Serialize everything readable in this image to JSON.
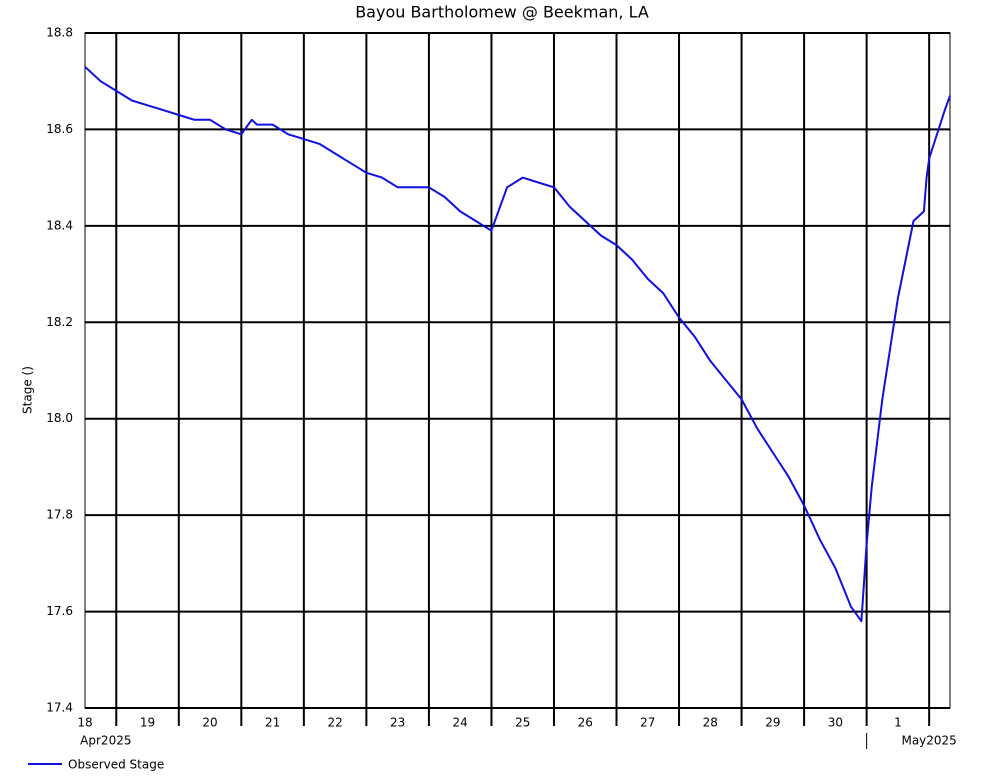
{
  "chart_data": {
    "type": "line",
    "title": "Bayou Bartholomew @ Beekman, LA",
    "y_label": "Stage ()",
    "xlim": [
      "2025-04-18T12:00",
      "2025-05-02T08:00"
    ],
    "ylim": [
      17.4,
      18.8
    ],
    "yticks": [
      17.4,
      17.6,
      17.8,
      {
        "value": 18,
        "label": "18.0"
      },
      18.2,
      18.4,
      18.6,
      18.8
    ],
    "xticks": [
      {
        "value": "2025-04-18T12:00",
        "label": "18"
      },
      {
        "value": "2025-04-19T12:00",
        "label": "19"
      },
      {
        "value": "2025-04-20T12:00",
        "label": "20"
      },
      {
        "value": "2025-04-21T12:00",
        "label": "21"
      },
      {
        "value": "2025-04-22T12:00",
        "label": "22"
      },
      {
        "value": "2025-04-23T12:00",
        "label": "23"
      },
      {
        "value": "2025-04-24T12:00",
        "label": "24"
      },
      {
        "value": "2025-04-25T12:00",
        "label": "25"
      },
      {
        "value": "2025-04-26T12:00",
        "label": "26"
      },
      {
        "value": "2025-04-27T12:00",
        "label": "27"
      },
      {
        "value": "2025-04-28T12:00",
        "label": "28"
      },
      {
        "value": "2025-04-29T12:00",
        "label": "29"
      },
      {
        "value": "2025-04-30T12:00",
        "label": "30"
      },
      {
        "value": "2025-05-01T12:00",
        "label": "1"
      }
    ],
    "xgrid": [
      "2025-04-19T00:00",
      "2025-04-20T00:00",
      "2025-04-21T00:00",
      "2025-04-22T00:00",
      "2025-04-23T00:00",
      "2025-04-24T00:00",
      "2025-04-25T00:00",
      "2025-04-26T00:00",
      "2025-04-27T00:00",
      "2025-04-28T00:00",
      "2025-04-29T00:00",
      "2025-04-30T00:00",
      "2025-05-01T00:00",
      "2025-05-02T00:00"
    ],
    "month_labels": [
      {
        "value": "2025-04-18T20:00",
        "label": "Apr2025"
      },
      {
        "value": "2025-05-02T00:00",
        "label": "May2025"
      }
    ],
    "month_boundaries": [
      "2025-05-01T00:00"
    ],
    "grid": true,
    "legend": "bottom-left",
    "x": [
      "2025-04-18T12:00",
      "2025-04-18T18:00",
      "2025-04-19T00:00",
      "2025-04-19T06:00",
      "2025-04-19T12:00",
      "2025-04-19T18:00",
      "2025-04-20T00:00",
      "2025-04-20T06:00",
      "2025-04-20T12:00",
      "2025-04-20T18:00",
      "2025-04-21T00:00",
      "2025-04-21T04:00",
      "2025-04-21T06:00",
      "2025-04-21T12:00",
      "2025-04-21T18:00",
      "2025-04-22T00:00",
      "2025-04-22T06:00",
      "2025-04-22T12:00",
      "2025-04-22T18:00",
      "2025-04-23T00:00",
      "2025-04-23T06:00",
      "2025-04-23T12:00",
      "2025-04-23T18:00",
      "2025-04-24T00:00",
      "2025-04-24T06:00",
      "2025-04-24T12:00",
      "2025-04-24T18:00",
      "2025-04-25T00:00",
      "2025-04-25T06:00",
      "2025-04-25T12:00",
      "2025-04-25T18:00",
      "2025-04-26T00:00",
      "2025-04-26T06:00",
      "2025-04-26T12:00",
      "2025-04-26T18:00",
      "2025-04-27T00:00",
      "2025-04-27T06:00",
      "2025-04-27T12:00",
      "2025-04-27T18:00",
      "2025-04-28T00:00",
      "2025-04-28T06:00",
      "2025-04-28T12:00",
      "2025-04-28T18:00",
      "2025-04-29T00:00",
      "2025-04-29T06:00",
      "2025-04-29T12:00",
      "2025-04-29T18:00",
      "2025-04-30T00:00",
      "2025-04-30T06:00",
      "2025-04-30T12:00",
      "2025-04-30T18:00",
      "2025-04-30T22:00",
      "2025-05-01T00:00",
      "2025-05-01T02:00",
      "2025-05-01T06:00",
      "2025-05-01T12:00",
      "2025-05-01T18:00",
      "2025-05-01T22:00",
      "2025-05-01T23:00",
      "2025-05-02T00:00",
      "2025-05-02T06:00",
      "2025-05-02T08:00"
    ],
    "series": [
      {
        "name": "Observed Stage",
        "color": "#1010e0",
        "values": [
          18.73,
          18.7,
          18.68,
          18.66,
          18.65,
          18.64,
          18.63,
          18.62,
          18.62,
          18.6,
          18.59,
          18.62,
          18.61,
          18.61,
          18.59,
          18.58,
          18.57,
          18.55,
          18.53,
          18.51,
          18.5,
          18.48,
          18.48,
          18.48,
          18.46,
          18.43,
          18.41,
          18.39,
          18.48,
          18.5,
          18.49,
          18.48,
          18.44,
          18.41,
          18.38,
          18.36,
          18.33,
          18.29,
          18.26,
          18.21,
          18.17,
          18.12,
          18.08,
          18.04,
          17.98,
          17.93,
          17.88,
          17.82,
          17.75,
          17.69,
          17.61,
          17.58,
          17.74,
          17.86,
          18.04,
          18.25,
          18.41,
          18.43,
          18.5,
          18.54,
          18.64,
          18.67
        ]
      }
    ]
  }
}
